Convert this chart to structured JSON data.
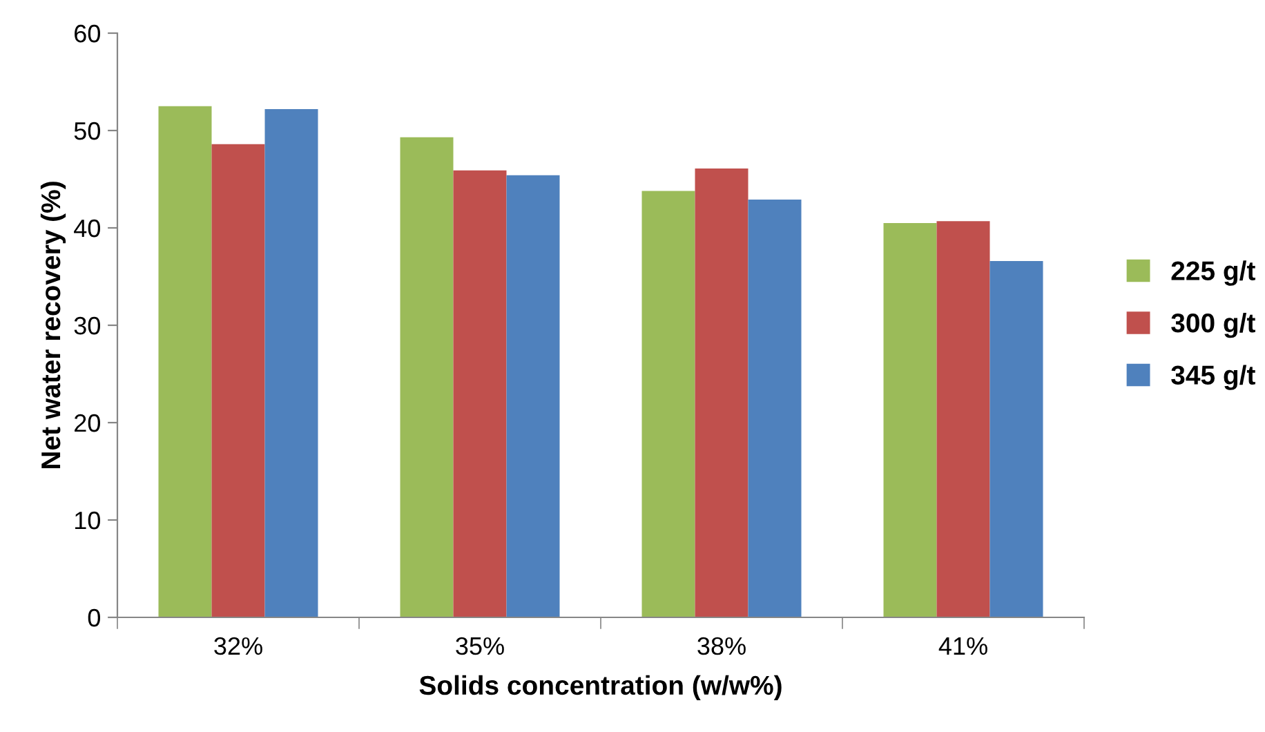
{
  "chart_data": {
    "type": "bar",
    "xlabel": "Solids concentration (w/w%)",
    "ylabel": "Net water recovery (%)",
    "categories": [
      "32%",
      "35%",
      "38%",
      "41%"
    ],
    "series": [
      {
        "name": "225 g/t",
        "color": "#9bbb59",
        "values": [
          52.5,
          49.3,
          43.8,
          40.5
        ]
      },
      {
        "name": "300 g/t",
        "color": "#c0504d",
        "values": [
          48.6,
          45.9,
          46.1,
          40.7
        ]
      },
      {
        "name": "345 g/t",
        "color": "#4f81bd",
        "values": [
          52.2,
          45.4,
          42.9,
          36.6
        ]
      }
    ],
    "ylim": [
      0,
      60
    ],
    "yticks": [
      0,
      10,
      20,
      30,
      40,
      50,
      60
    ],
    "grid": false,
    "legend": "right"
  }
}
